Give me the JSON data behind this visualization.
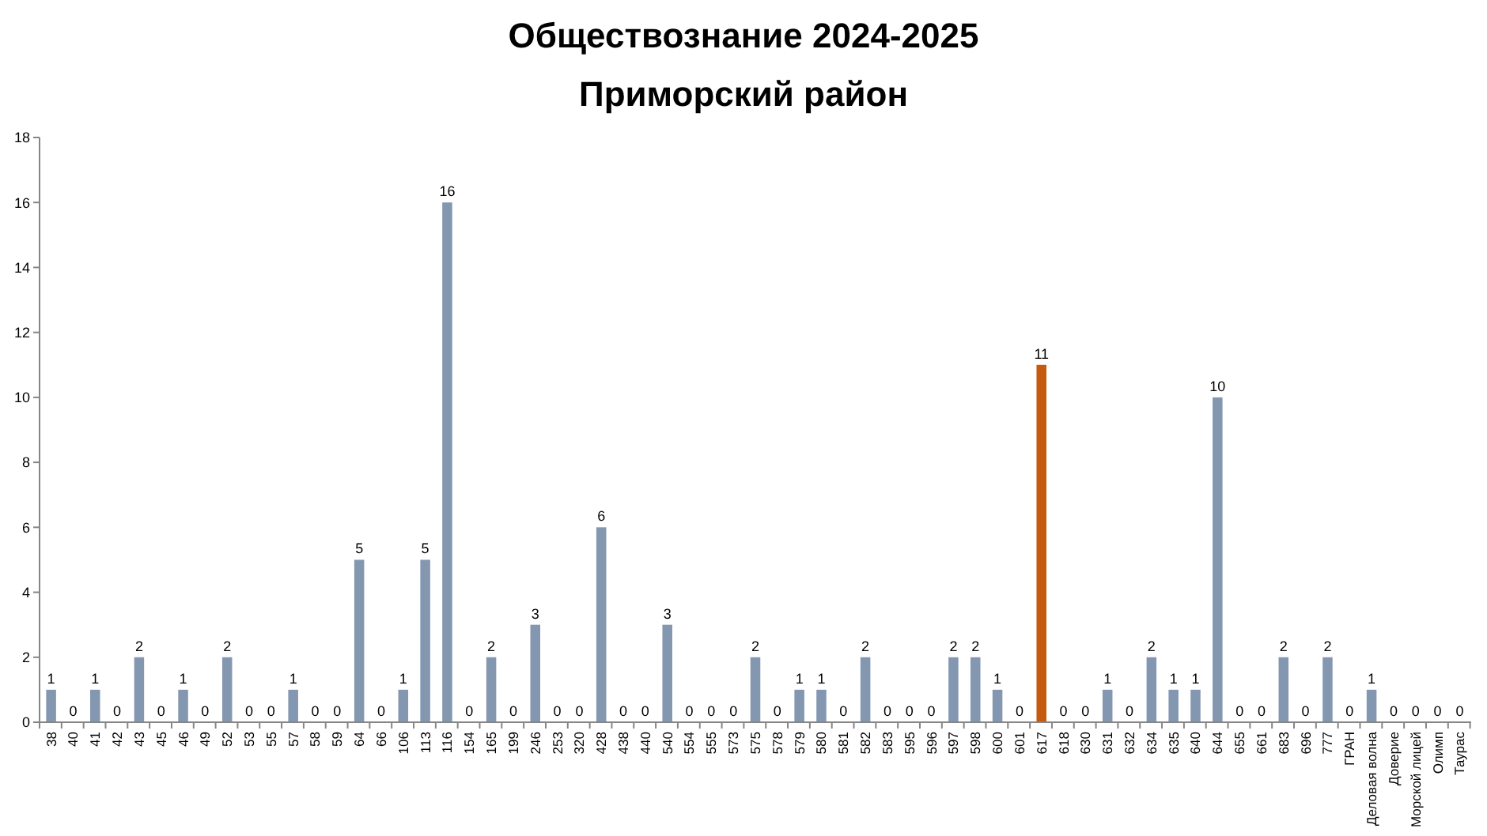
{
  "chart_data": {
    "type": "bar",
    "title": "Обществознание 2024-2025",
    "subtitle": "Приморский район",
    "categories": [
      "38",
      "40",
      "41",
      "42",
      "43",
      "45",
      "46",
      "49",
      "52",
      "53",
      "55",
      "57",
      "58",
      "59",
      "64",
      "66",
      "106",
      "113",
      "116",
      "154",
      "165",
      "199",
      "246",
      "253",
      "320",
      "428",
      "438",
      "440",
      "540",
      "554",
      "555",
      "573",
      "575",
      "578",
      "579",
      "580",
      "581",
      "582",
      "583",
      "595",
      "596",
      "597",
      "598",
      "600",
      "601",
      "617",
      "618",
      "630",
      "631",
      "632",
      "634",
      "635",
      "640",
      "644",
      "655",
      "661",
      "683",
      "696",
      "777",
      "ГРАН",
      "Деловая волна",
      "Доверие",
      "Морской лицей",
      "Олимп",
      "Таурас"
    ],
    "values": [
      1,
      0,
      1,
      0,
      2,
      0,
      1,
      0,
      2,
      0,
      0,
      1,
      0,
      0,
      5,
      0,
      1,
      5,
      16,
      0,
      2,
      0,
      3,
      0,
      0,
      6,
      0,
      0,
      3,
      0,
      0,
      0,
      2,
      0,
      1,
      1,
      0,
      2,
      0,
      0,
      0,
      2,
      2,
      1,
      0,
      11,
      0,
      0,
      1,
      0,
      2,
      1,
      1,
      10,
      0,
      0,
      2,
      0,
      2,
      0,
      1,
      0,
      0,
      0,
      0
    ],
    "colors": [
      "#8497b0",
      "#8497b0",
      "#8497b0",
      "#8497b0",
      "#8497b0",
      "#8497b0",
      "#8497b0",
      "#8497b0",
      "#8497b0",
      "#8497b0",
      "#8497b0",
      "#8497b0",
      "#8497b0",
      "#8497b0",
      "#8497b0",
      "#8497b0",
      "#8497b0",
      "#8497b0",
      "#8497b0",
      "#8497b0",
      "#8497b0",
      "#8497b0",
      "#8497b0",
      "#8497b0",
      "#8497b0",
      "#8497b0",
      "#8497b0",
      "#8497b0",
      "#8497b0",
      "#8497b0",
      "#8497b0",
      "#8497b0",
      "#8497b0",
      "#8497b0",
      "#8497b0",
      "#8497b0",
      "#8497b0",
      "#8497b0",
      "#8497b0",
      "#8497b0",
      "#8497b0",
      "#8497b0",
      "#8497b0",
      "#8497b0",
      "#8497b0",
      "#c55a11",
      "#8497b0",
      "#8497b0",
      "#8497b0",
      "#8497b0",
      "#8497b0",
      "#8497b0",
      "#8497b0",
      "#8497b0",
      "#8497b0",
      "#8497b0",
      "#8497b0",
      "#8497b0",
      "#8497b0",
      "#8497b0",
      "#8497b0",
      "#8497b0",
      "#8497b0",
      "#8497b0",
      "#8497b0"
    ],
    "ylim": [
      0,
      18
    ],
    "yticks": [
      0,
      2,
      4,
      6,
      8,
      10,
      12,
      14,
      16,
      18
    ],
    "data_labels": true,
    "grid": false
  }
}
